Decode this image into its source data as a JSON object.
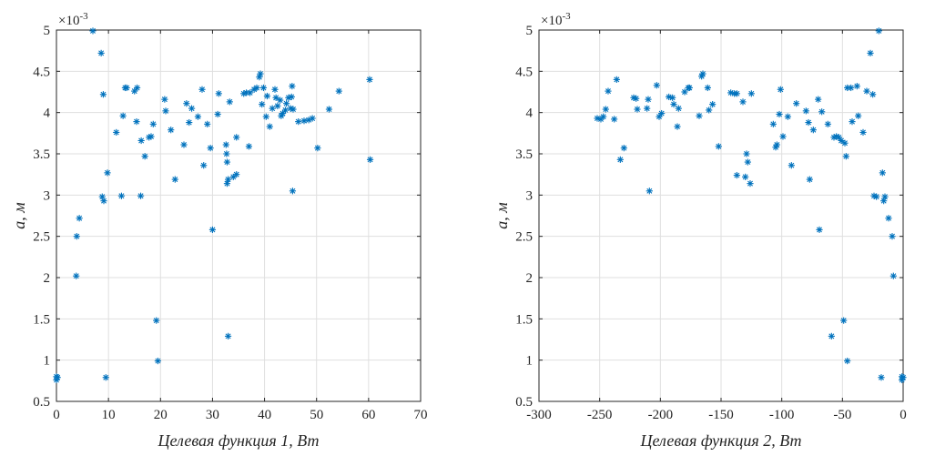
{
  "chart_data": [
    {
      "type": "scatter",
      "title": "",
      "xlabel": "Целевая функция 1, Вт",
      "ylabel": "а, м",
      "y_exponent_label": "×10",
      "y_exponent_power": "-3",
      "xlim": [
        0,
        70
      ],
      "ylim": [
        0.5,
        5
      ],
      "x_ticks": [
        0,
        10,
        20,
        30,
        40,
        50,
        60,
        70
      ],
      "x_tick_labels": [
        "0",
        "10",
        "20",
        "30",
        "40",
        "50",
        "60",
        "70"
      ],
      "y_ticks": [
        0.5,
        1,
        1.5,
        2,
        2.5,
        3,
        3.5,
        4,
        4.5,
        5
      ],
      "y_tick_labels": [
        "0.5",
        "1",
        "1.5",
        "2",
        "2.5",
        "3",
        "3.5",
        "4",
        "4.5",
        "5"
      ],
      "grid": true,
      "marker": "asterisk",
      "color": "#0072bd",
      "points": [
        [
          0,
          0.8
        ],
        [
          0,
          0.76
        ],
        [
          0.2,
          0.79
        ],
        [
          3.8,
          2.02
        ],
        [
          3.9,
          2.5
        ],
        [
          4.4,
          2.72
        ],
        [
          7,
          4.99
        ],
        [
          8.6,
          4.72
        ],
        [
          9,
          4.22
        ],
        [
          8.8,
          2.98
        ],
        [
          9.1,
          2.93
        ],
        [
          9.5,
          0.79
        ],
        [
          9.8,
          3.27
        ],
        [
          11.5,
          3.76
        ],
        [
          12.5,
          2.99
        ],
        [
          12.8,
          3.96
        ],
        [
          13.2,
          4.3
        ],
        [
          13.5,
          4.3
        ],
        [
          15,
          4.26
        ],
        [
          15.4,
          3.89
        ],
        [
          15.5,
          4.3
        ],
        [
          16.3,
          3.66
        ],
        [
          16.2,
          2.99
        ],
        [
          17,
          3.47
        ],
        [
          17.8,
          3.7
        ],
        [
          18.2,
          3.71
        ],
        [
          18.6,
          3.86
        ],
        [
          19.2,
          1.48
        ],
        [
          19.5,
          0.99
        ],
        [
          20.8,
          4.16
        ],
        [
          21,
          4.02
        ],
        [
          22,
          3.79
        ],
        [
          22.8,
          3.19
        ],
        [
          24.5,
          3.61
        ],
        [
          25,
          4.11
        ],
        [
          25.5,
          3.88
        ],
        [
          26,
          4.05
        ],
        [
          27.2,
          3.95
        ],
        [
          28,
          4.28
        ],
        [
          28.3,
          3.36
        ],
        [
          29,
          3.86
        ],
        [
          29.6,
          3.57
        ],
        [
          30,
          2.58
        ],
        [
          31,
          3.98
        ],
        [
          31.2,
          4.23
        ],
        [
          32.6,
          3.61
        ],
        [
          32.7,
          3.5
        ],
        [
          32.8,
          3.4
        ],
        [
          32.8,
          3.14
        ],
        [
          33,
          3.19
        ],
        [
          33,
          1.29
        ],
        [
          33.3,
          4.13
        ],
        [
          34,
          3.22
        ],
        [
          34.6,
          3.25
        ],
        [
          34.6,
          3.7
        ],
        [
          36,
          4.23
        ],
        [
          36.5,
          4.24
        ],
        [
          37,
          3.59
        ],
        [
          37.2,
          4.24
        ],
        [
          38,
          4.28
        ],
        [
          38.5,
          4.3
        ],
        [
          39,
          4.43
        ],
        [
          39.2,
          4.47
        ],
        [
          39.5,
          4.1
        ],
        [
          39.8,
          4.3
        ],
        [
          40.3,
          3.95
        ],
        [
          40.5,
          4.2
        ],
        [
          41,
          3.83
        ],
        [
          41.5,
          4.05
        ],
        [
          42,
          4.28
        ],
        [
          42.2,
          4.18
        ],
        [
          42.5,
          4.08
        ],
        [
          43,
          4.15
        ],
        [
          43.2,
          3.96
        ],
        [
          43.5,
          3.99
        ],
        [
          44,
          4.03
        ],
        [
          44.2,
          4.11
        ],
        [
          44.6,
          4.18
        ],
        [
          45,
          4.05
        ],
        [
          45.2,
          4.19
        ],
        [
          45.3,
          4.32
        ],
        [
          45.5,
          4.04
        ],
        [
          45.4,
          3.05
        ],
        [
          46.5,
          3.89
        ],
        [
          47.6,
          3.9
        ],
        [
          48.5,
          3.91
        ],
        [
          49.2,
          3.93
        ],
        [
          50.2,
          3.57
        ],
        [
          52.4,
          4.04
        ],
        [
          54.3,
          4.26
        ],
        [
          60.2,
          4.4
        ],
        [
          60.3,
          3.43
        ]
      ]
    },
    {
      "type": "scatter",
      "title": "",
      "xlabel": "Целевая функция 2, Вт",
      "ylabel": "а, м",
      "y_exponent_label": "×10",
      "y_exponent_power": "-3",
      "xlim": [
        -300,
        0
      ],
      "ylim": [
        0.5,
        5
      ],
      "x_ticks": [
        -300,
        -250,
        -200,
        -150,
        -100,
        -50,
        0
      ],
      "x_tick_labels": [
        "-300",
        "-250",
        "-200",
        "-150",
        "-100",
        "-50",
        "0"
      ],
      "y_ticks": [
        0.5,
        1,
        1.5,
        2,
        2.5,
        3,
        3.5,
        4,
        4.5,
        5
      ],
      "y_tick_labels": [
        "0.5",
        "1",
        "1.5",
        "2",
        "2.5",
        "3",
        "3.5",
        "4",
        "4.5",
        "5"
      ],
      "grid": true,
      "marker": "asterisk",
      "color": "#0072bd",
      "points": [
        [
          -252,
          3.93
        ],
        [
          -249,
          3.92
        ],
        [
          -247,
          3.95
        ],
        [
          -245,
          4.04
        ],
        [
          -243,
          4.26
        ],
        [
          -238,
          3.92
        ],
        [
          -236,
          4.4
        ],
        [
          -233,
          3.43
        ],
        [
          -230,
          3.57
        ],
        [
          -222,
          4.18
        ],
        [
          -220,
          4.17
        ],
        [
          -219,
          4.04
        ],
        [
          -211,
          4.05
        ],
        [
          -210,
          4.16
        ],
        [
          -209,
          3.05
        ],
        [
          -203,
          4.33
        ],
        [
          -201,
          3.95
        ],
        [
          -199,
          3.99
        ],
        [
          -193,
          4.19
        ],
        [
          -190,
          4.18
        ],
        [
          -189,
          4.1
        ],
        [
          -186,
          3.83
        ],
        [
          -185,
          4.05
        ],
        [
          -180,
          4.25
        ],
        [
          -177,
          4.3
        ],
        [
          -176,
          4.3
        ],
        [
          -168,
          3.96
        ],
        [
          -166,
          4.44
        ],
        [
          -165,
          4.47
        ],
        [
          -161,
          4.3
        ],
        [
          -160,
          4.03
        ],
        [
          -157,
          4.1
        ],
        [
          -152,
          3.59
        ],
        [
          -142,
          4.24
        ],
        [
          -139,
          4.23
        ],
        [
          -137,
          4.23
        ],
        [
          -137,
          3.24
        ],
        [
          -132,
          4.13
        ],
        [
          -130,
          3.22
        ],
        [
          -129,
          3.5
        ],
        [
          -128,
          3.4
        ],
        [
          -126,
          3.14
        ],
        [
          -125,
          4.23
        ],
        [
          -107,
          3.86
        ],
        [
          -105,
          3.58
        ],
        [
          -104,
          3.61
        ],
        [
          -102,
          3.98
        ],
        [
          -101,
          4.28
        ],
        [
          -99,
          3.71
        ],
        [
          -95,
          3.95
        ],
        [
          -92,
          3.36
        ],
        [
          -88,
          4.11
        ],
        [
          -80,
          4.02
        ],
        [
          -78,
          3.88
        ],
        [
          -77,
          3.19
        ],
        [
          -74,
          3.79
        ],
        [
          -70,
          4.16
        ],
        [
          -69,
          2.58
        ],
        [
          -67,
          4.01
        ],
        [
          -62,
          3.86
        ],
        [
          -59,
          1.29
        ],
        [
          -57,
          3.7
        ],
        [
          -55,
          3.71
        ],
        [
          -53,
          3.7
        ],
        [
          -51,
          3.66
        ],
        [
          -49,
          1.48
        ],
        [
          -48,
          3.63
        ],
        [
          -47,
          3.47
        ],
        [
          -46,
          4.3
        ],
        [
          -46,
          0.99
        ],
        [
          -43,
          4.3
        ],
        [
          -42,
          3.89
        ],
        [
          -38,
          4.32
        ],
        [
          -37,
          3.96
        ],
        [
          -33,
          3.76
        ],
        [
          -30,
          4.26
        ],
        [
          -27,
          4.72
        ],
        [
          -25,
          4.22
        ],
        [
          -24,
          2.99
        ],
        [
          -22,
          2.98
        ],
        [
          -20,
          4.99
        ],
        [
          -18,
          0.79
        ],
        [
          -17,
          3.27
        ],
        [
          -16,
          2.93
        ],
        [
          -15,
          2.98
        ],
        [
          -12,
          2.72
        ],
        [
          -9,
          2.5
        ],
        [
          -8,
          2.02
        ],
        [
          -1,
          0.8
        ],
        [
          -1,
          0.76
        ],
        [
          0,
          0.79
        ]
      ]
    }
  ]
}
